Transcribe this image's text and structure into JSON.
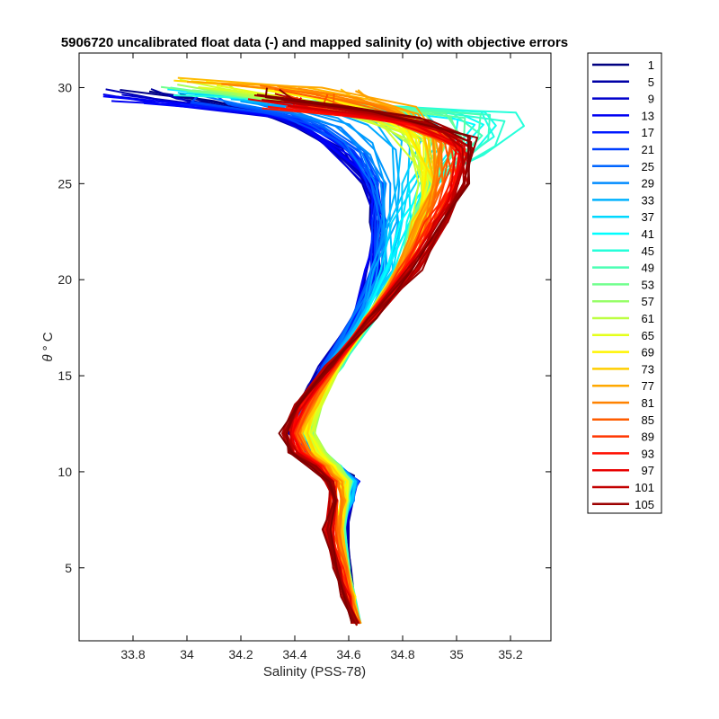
{
  "chart_data": {
    "type": "line",
    "title": "5906720 uncalibrated float data (-) and mapped salinity (o) with objective errors",
    "xlabel": "Salinity (PSS-78)",
    "ylabel_symbol": "θ",
    "ylabel_unit": "° C",
    "xlim": [
      33.6,
      35.35
    ],
    "ylim": [
      1.2,
      31.8
    ],
    "xticks": [
      33.8,
      34,
      34.2,
      34.4,
      34.6,
      34.8,
      35,
      35.2
    ],
    "xtick_labels": [
      "33.8",
      "34",
      "34.2",
      "34.4",
      "34.6",
      "34.8",
      "35",
      "35.2"
    ],
    "yticks": [
      5,
      10,
      15,
      20,
      25,
      30
    ],
    "ytick_labels": [
      "5",
      "10",
      "15",
      "20",
      "25",
      "30"
    ],
    "legend_position": "outside-right",
    "colormap": "jet",
    "legend_entries": [
      "1",
      "5",
      "9",
      "13",
      "17",
      "21",
      "25",
      "29",
      "33",
      "37",
      "41",
      "45",
      "49",
      "53",
      "57",
      "61",
      "65",
      "69",
      "73",
      "77",
      "81",
      "85",
      "89",
      "93",
      "97",
      "101",
      "105"
    ],
    "profile_count": 108,
    "series": [
      {
        "name": "1",
        "x": [
          33.86,
          34.1,
          34.35,
          34.55,
          34.66,
          34.69,
          34.7,
          34.69,
          34.6,
          34.45,
          34.38,
          34.4,
          34.5,
          34.55,
          34.62,
          34.6,
          34.6,
          34.63
        ],
        "y": [
          29.8,
          29.3,
          28.5,
          26.8,
          25.3,
          24.5,
          22.5,
          20,
          17.5,
          14.5,
          12.5,
          11.3,
          10.8,
          10.3,
          9.8,
          8.5,
          4,
          2
        ]
      },
      {
        "name": "13",
        "x": [
          33.72,
          34.1,
          34.4,
          34.6,
          34.68,
          34.7,
          34.7,
          34.68,
          34.58,
          34.45,
          34.4,
          34.42,
          34.52,
          34.57,
          34.63,
          34.57,
          34.59,
          34.63
        ],
        "y": [
          29.3,
          29.0,
          28.3,
          26.5,
          25.0,
          24.0,
          22.0,
          19.5,
          17.0,
          14.2,
          12.3,
          11.1,
          10.6,
          10.1,
          9.6,
          7.5,
          4.2,
          2.1
        ]
      },
      {
        "name": "29",
        "x": [
          34.15,
          34.35,
          34.55,
          34.68,
          34.72,
          34.73,
          34.7,
          34.6,
          34.47,
          34.42,
          34.48,
          34.55,
          34.6,
          34.63,
          34.57,
          34.59,
          34.63
        ],
        "y": [
          29.5,
          29.0,
          28.0,
          26.5,
          25.0,
          23.0,
          20.0,
          17.2,
          14.5,
          12.0,
          11.0,
          10.4,
          9.9,
          9.3,
          7.0,
          4.0,
          2.0
        ]
      },
      {
        "name": "45",
        "x": [
          33.95,
          34.35,
          34.8,
          35.05,
          35.22,
          35.25,
          35.1,
          34.95,
          34.85,
          34.78,
          34.62,
          34.48,
          34.45,
          34.5,
          34.56,
          34.6,
          34.57,
          34.6,
          34.63
        ],
        "y": [
          29.6,
          29.4,
          29.0,
          28.8,
          28.7,
          28.0,
          26.5,
          25.5,
          23.0,
          20.0,
          16.5,
          13.8,
          12.0,
          11.0,
          10.3,
          9.4,
          7.0,
          4.0,
          2.0
        ]
      },
      {
        "name": "61",
        "x": [
          34.05,
          34.4,
          34.7,
          34.85,
          34.88,
          34.85,
          34.78,
          34.62,
          34.5,
          34.46,
          34.5,
          34.56,
          34.6,
          34.57,
          34.6,
          34.63
        ],
        "y": [
          30.0,
          29.3,
          28.3,
          26.8,
          25.0,
          22.5,
          20.0,
          17.0,
          14.0,
          12.0,
          11.0,
          10.2,
          9.4,
          7.0,
          4.0,
          2.0
        ]
      },
      {
        "name": "77",
        "x": [
          34.0,
          34.5,
          34.85,
          34.95,
          34.92,
          34.85,
          34.78,
          34.62,
          34.48,
          34.42,
          34.45,
          34.52,
          34.58,
          34.56,
          34.6,
          34.63
        ],
        "y": [
          30.3,
          30.0,
          29.0,
          27.0,
          25.0,
          22.5,
          20.0,
          17.0,
          14.0,
          12.0,
          11.0,
          10.2,
          9.2,
          7.0,
          4.0,
          2.0
        ]
      },
      {
        "name": "93",
        "x": [
          34.3,
          34.6,
          34.9,
          35.02,
          35.0,
          34.9,
          34.8,
          34.62,
          34.45,
          34.38,
          34.4,
          34.48,
          34.55,
          34.53,
          34.58,
          34.63
        ],
        "y": [
          29.0,
          28.5,
          28.0,
          27.2,
          25.0,
          22.5,
          20.0,
          17.0,
          14.0,
          12.3,
          11.2,
          10.4,
          9.2,
          7.0,
          4.0,
          2.0
        ]
      },
      {
        "name": "105",
        "x": [
          34.25,
          34.6,
          34.9,
          35.05,
          35.03,
          34.93,
          34.82,
          34.62,
          34.42,
          34.36,
          34.4,
          34.5,
          34.55,
          34.52,
          34.58,
          34.63
        ],
        "y": [
          29.6,
          29.0,
          28.3,
          27.4,
          25.0,
          22.3,
          20.0,
          17.0,
          13.8,
          12.0,
          10.8,
          10.0,
          9.0,
          7.0,
          3.5,
          2.0
        ]
      }
    ]
  }
}
